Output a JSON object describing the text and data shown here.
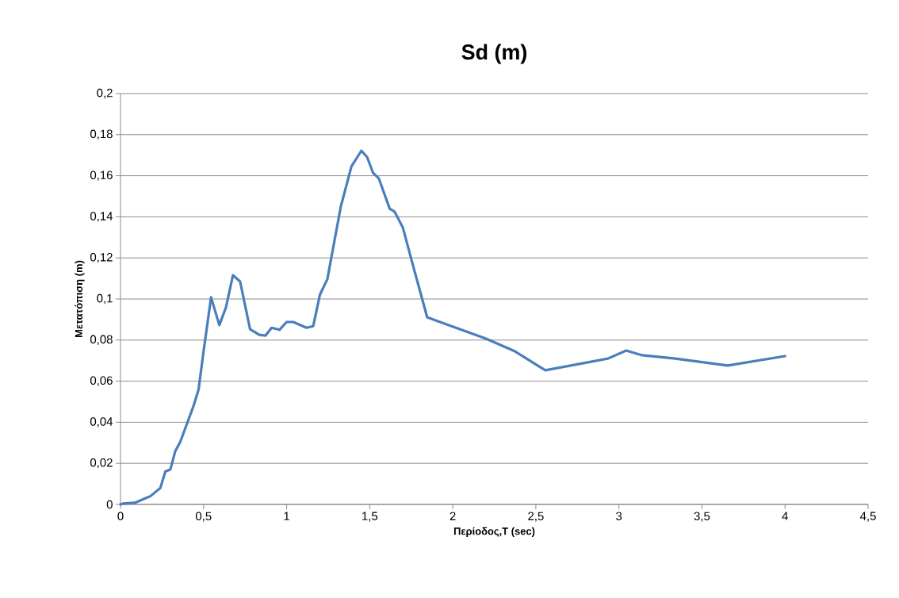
{
  "chart_data": {
    "type": "line",
    "title": "Sd (m)",
    "xlabel": "Περίοδος,T (sec)",
    "ylabel": "Μετατόπιση (m)",
    "x": [
      0,
      0.014,
      0.086,
      0.15,
      0.18,
      0.24,
      0.27,
      0.3,
      0.33,
      0.36,
      0.42,
      0.44,
      0.47,
      0.5,
      0.545,
      0.595,
      0.635,
      0.677,
      0.72,
      0.78,
      0.835,
      0.873,
      0.91,
      0.957,
      1.0,
      1.04,
      1.12,
      1.16,
      1.2,
      1.245,
      1.326,
      1.39,
      1.45,
      1.485,
      1.52,
      1.555,
      1.62,
      1.65,
      1.7,
      1.755,
      1.846,
      1.91,
      2.2,
      2.375,
      2.557,
      2.934,
      3.044,
      3.14,
      3.33,
      3.655,
      4.0
    ],
    "series": [
      {
        "color": "#4a7ebb",
        "values": [
          0,
          0.0004,
          0.0008,
          0.003,
          0.004,
          0.008,
          0.016,
          0.017,
          0.026,
          0.0305,
          0.0436,
          0.048,
          0.056,
          0.0745,
          0.1008,
          0.0873,
          0.096,
          0.1116,
          0.1085,
          0.0853,
          0.0826,
          0.0822,
          0.086,
          0.085,
          0.0888,
          0.0888,
          0.086,
          0.0868,
          0.102,
          0.1096,
          0.145,
          0.1645,
          0.1722,
          0.169,
          0.1614,
          0.1587,
          0.144,
          0.1425,
          0.1347,
          0.118,
          0.0911,
          0.0892,
          0.0807,
          0.0745,
          0.0653,
          0.071,
          0.0749,
          0.0726,
          0.0711,
          0.0676,
          0.0722
        ]
      }
    ],
    "xlim": [
      0,
      4.5
    ],
    "ylim": [
      0,
      0.2
    ],
    "xticks": [
      0,
      {
        "value": 0.5,
        "label": "0,5"
      },
      1,
      {
        "value": 1.5,
        "label": "1,5"
      },
      2,
      {
        "value": 2.5,
        "label": "2,5"
      },
      3,
      {
        "value": 3.5,
        "label": "3,5"
      },
      4,
      {
        "value": 4.5,
        "label": "4,5"
      }
    ],
    "yticks": [
      0,
      {
        "value": 0.02,
        "label": "0,02"
      },
      {
        "value": 0.04,
        "label": "0,04"
      },
      {
        "value": 0.06,
        "label": "0,06"
      },
      {
        "value": 0.08,
        "label": "0,08"
      },
      {
        "value": 0.1,
        "label": "0,1"
      },
      {
        "value": 0.12,
        "label": "0,12"
      },
      {
        "value": 0.14,
        "label": "0,14"
      },
      {
        "value": 0.16,
        "label": "0,16"
      },
      {
        "value": 0.18,
        "label": "0,18"
      },
      {
        "value": 0.2,
        "label": "0,2"
      }
    ],
    "grid": "y",
    "line_style": "solid"
  }
}
